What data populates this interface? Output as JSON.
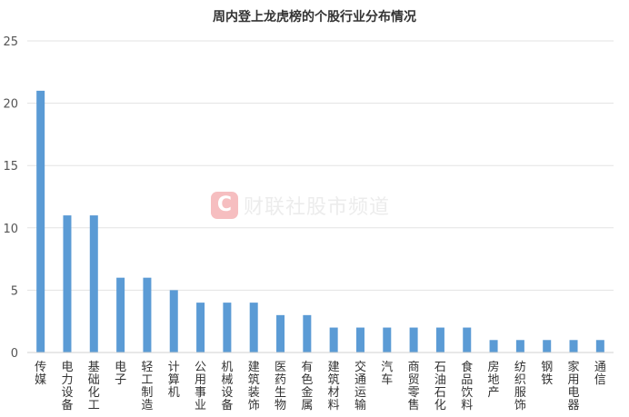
{
  "chart_data": {
    "type": "bar",
    "title": "周内登上龙虎榜的个股行业分布情况",
    "categories": [
      "传媒",
      "电力设备",
      "基础化工",
      "电子",
      "轻工制造",
      "计算机",
      "公用事业",
      "机械设备",
      "建筑装饰",
      "医药生物",
      "有色金属",
      "建筑材料",
      "交通运输",
      "汽车",
      "商贸零售",
      "石油石化",
      "食品饮料",
      "房地产",
      "纺织服饰",
      "钢铁",
      "家用电器",
      "通信"
    ],
    "values": [
      21,
      11,
      11,
      6,
      6,
      5,
      4,
      4,
      4,
      3,
      3,
      2,
      2,
      2,
      2,
      2,
      2,
      1,
      1,
      1,
      1,
      1
    ],
    "ylim": [
      0,
      25
    ],
    "yticks": [
      0,
      5,
      10,
      15,
      20,
      25
    ],
    "grid": true,
    "bar_color": "#5b9bd5"
  },
  "watermark": {
    "logo": "C",
    "text": "财联社股市频道"
  }
}
